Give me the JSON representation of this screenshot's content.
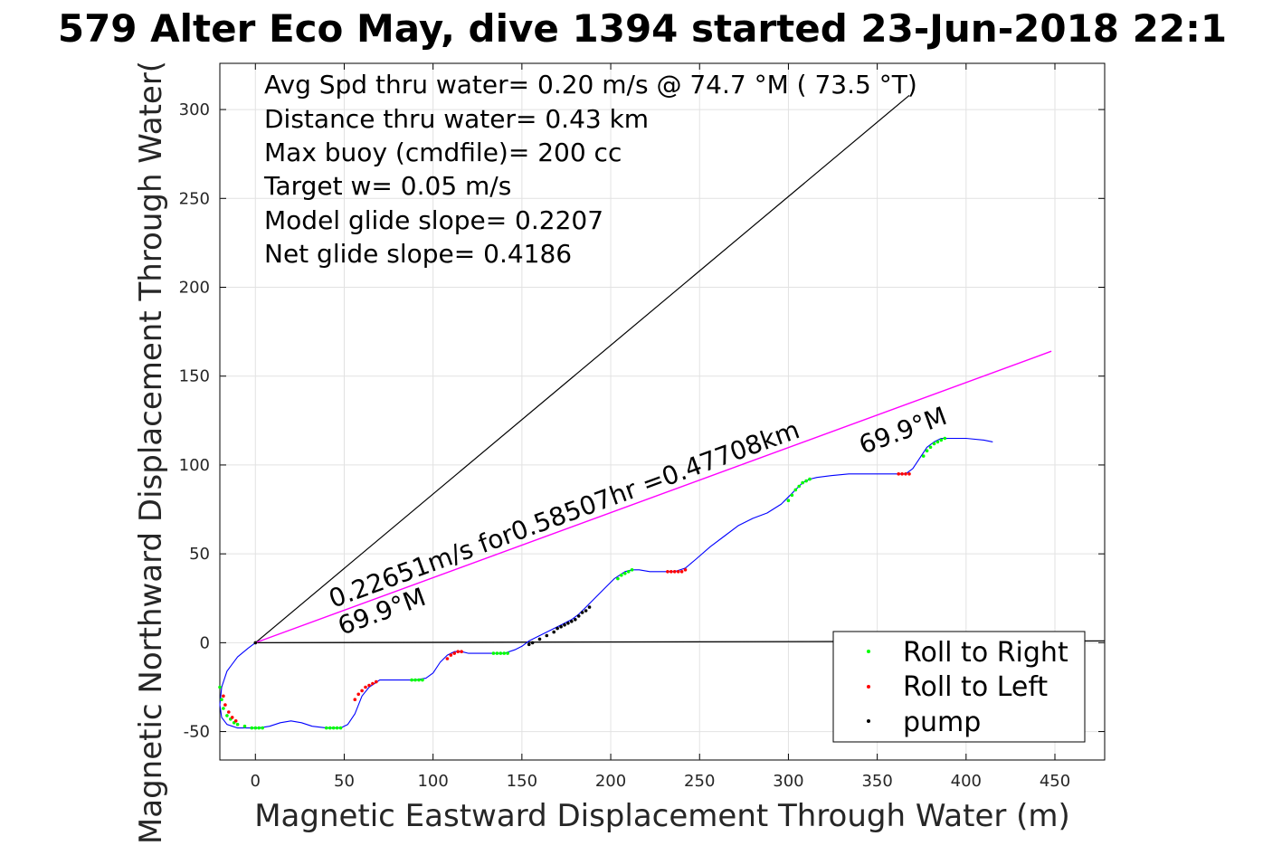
{
  "chart_data": {
    "type": "line",
    "title": "579 Alter Eco May, dive 1394 started 23-Jun-2018 22:1",
    "xlabel": "Magnetic Eastward Displacement Through Water (m)",
    "ylabel": "Magnetic Northward Displacement Through Water(",
    "xlim": [
      -20,
      478
    ],
    "ylim": [
      -66,
      326
    ],
    "xticks": [
      0,
      50,
      100,
      150,
      200,
      250,
      300,
      350,
      400,
      450
    ],
    "yticks": [
      -50,
      0,
      50,
      100,
      150,
      200,
      250,
      300
    ],
    "grid": true,
    "legend_position": "bottom-right",
    "annotations": [
      "Avg Spd thru water=  0.20 m/s @  74.7 °M ( 73.5 °T)",
      "Distance thru water=  0.43 km",
      "Max buoy (cmdfile)= 200 cc",
      "Target w= 0.05 m/s",
      "Model glide slope= 0.2207",
      "Net glide slope= 0.4186"
    ],
    "line_labels": {
      "speed": "0.22651m/s for0.58507hr =0.47708km",
      "heading_start": "69.9°M",
      "heading_end": "69.9°M"
    },
    "colors": {
      "track": "#0000ff",
      "roll_right": "#00ff00",
      "roll_left": "#ff0000",
      "pump": "#000000",
      "course": "#ff00ff",
      "reference": "#000000"
    },
    "series": [
      {
        "name": "track",
        "x": [
          0,
          -4,
          -10,
          -16,
          -19,
          -20,
          -19,
          -16,
          -10,
          -4,
          2,
          8,
          14,
          20,
          26,
          32,
          40,
          48,
          52,
          56,
          60,
          64,
          70,
          80,
          90,
          96,
          100,
          104,
          108,
          112,
          116,
          120,
          130,
          140,
          146,
          150,
          154,
          160,
          166,
          172,
          178,
          182,
          186,
          190,
          196,
          202,
          208,
          212,
          216,
          222,
          230,
          236,
          242,
          248,
          256,
          264,
          272,
          280,
          288,
          296,
          300,
          304,
          308,
          312,
          316,
          324,
          334,
          346,
          356,
          362,
          366,
          370,
          374,
          378,
          382,
          386,
          392,
          400,
          410,
          415
        ],
        "y": [
          0,
          -3,
          -8,
          -16,
          -25,
          -35,
          -42,
          -46,
          -48,
          -48,
          -48,
          -47,
          -45,
          -44,
          -45,
          -47,
          -48,
          -48,
          -46,
          -40,
          -30,
          -25,
          -21,
          -21,
          -21,
          -20,
          -17,
          -11,
          -7,
          -5,
          -5,
          -6,
          -6,
          -6,
          -4,
          -2,
          1,
          4,
          7,
          10,
          13,
          16,
          20,
          24,
          30,
          36,
          40,
          41,
          41,
          40,
          40,
          40,
          42,
          47,
          54,
          60,
          66,
          70,
          73,
          78,
          82,
          86,
          90,
          92,
          93,
          94,
          95,
          95,
          95,
          95,
          95,
          98,
          104,
          110,
          113,
          115,
          115,
          115,
          114,
          113
        ]
      },
      {
        "name": "Roll to Right",
        "x": [
          -20,
          -19,
          -18,
          -16,
          -14,
          -12,
          -10,
          -6,
          -2,
          0,
          2,
          4,
          40,
          42,
          44,
          46,
          48,
          88,
          90,
          92,
          94,
          134,
          136,
          138,
          140,
          142,
          204,
          206,
          208,
          210,
          212,
          300,
          302,
          304,
          306,
          308,
          310,
          312,
          376,
          378,
          380,
          382,
          384,
          386,
          388
        ],
        "y": [
          -25,
          -32,
          -37,
          -41,
          -43,
          -45,
          -46,
          -47,
          -48,
          -48,
          -48,
          -48,
          -48,
          -48,
          -48,
          -48,
          -48,
          -21,
          -21,
          -21,
          -21,
          -6,
          -6,
          -6,
          -6,
          -6,
          36,
          38,
          39,
          40,
          41,
          80,
          83,
          86,
          88,
          90,
          91,
          92,
          105,
          108,
          110,
          112,
          113,
          114,
          115
        ]
      },
      {
        "name": "Roll to Left",
        "x": [
          -18,
          -17,
          -15,
          -13,
          -11,
          56,
          58,
          60,
          62,
          64,
          66,
          68,
          108,
          110,
          112,
          114,
          116,
          232,
          234,
          236,
          238,
          240,
          242,
          362,
          364,
          366,
          368
        ],
        "y": [
          -30,
          -35,
          -39,
          -42,
          -44,
          -32,
          -29,
          -27,
          -25,
          -24,
          -23,
          -22,
          -9,
          -7,
          -6,
          -5,
          -5,
          40,
          40,
          40,
          40,
          40,
          41,
          95,
          95,
          95,
          95
        ]
      },
      {
        "name": "pump",
        "x": [
          0,
          154,
          156,
          160,
          164,
          168,
          170,
          172,
          174,
          176,
          178,
          180,
          182,
          184,
          186,
          188
        ],
        "y": [
          0,
          -1,
          0,
          2,
          4,
          6,
          8,
          9,
          10,
          11,
          12,
          13,
          15,
          17,
          18,
          20
        ]
      },
      {
        "name": "course",
        "x": [
          0,
          448
        ],
        "y": [
          0,
          164
        ]
      },
      {
        "name": "reference",
        "x": [
          0,
          368
        ],
        "y": [
          0,
          308
        ]
      },
      {
        "name": "baseline",
        "x": [
          0,
          478
        ],
        "y": [
          0,
          1
        ]
      }
    ]
  }
}
